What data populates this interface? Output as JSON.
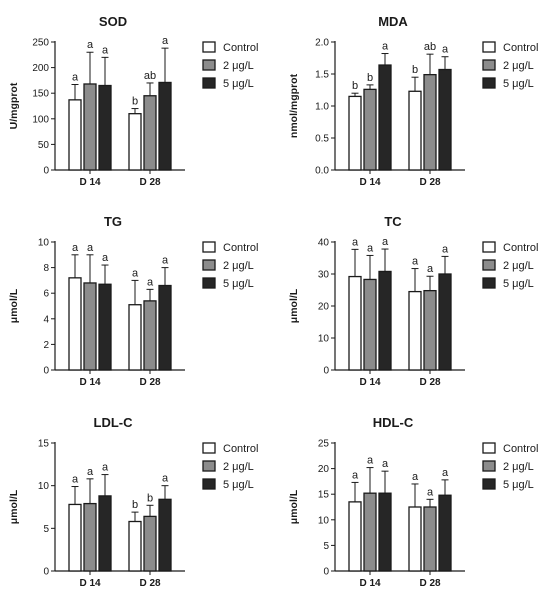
{
  "groups": [
    "D 14",
    "D 28"
  ],
  "legend": [
    "Control",
    "2 μg/L",
    "5 μg/L"
  ],
  "colors": {
    "Control": "#ffffff",
    "2 μg/L": "#8c8c8c",
    "5 μg/L": "#262626",
    "stroke": "#1a1a1a"
  },
  "chart_data": [
    {
      "type": "bar",
      "title": "SOD",
      "ylabel": "U/mgprot",
      "categories": [
        "D 14",
        "D 28"
      ],
      "ylim": [
        0,
        250
      ],
      "yticks": [
        0,
        50,
        100,
        150,
        200,
        250
      ],
      "series": [
        {
          "name": "Control",
          "values": [
            137,
            110
          ],
          "errors": [
            30,
            10
          ],
          "letters": [
            "a",
            "b"
          ]
        },
        {
          "name": "2 μg/L",
          "values": [
            168,
            145
          ],
          "errors": [
            62,
            25
          ],
          "letters": [
            "a",
            "ab"
          ]
        },
        {
          "name": "5 μg/L",
          "values": [
            165,
            171
          ],
          "errors": [
            55,
            67
          ],
          "letters": [
            "a",
            "a"
          ]
        }
      ]
    },
    {
      "type": "bar",
      "title": "MDA",
      "ylabel": "nmol/mgprot",
      "categories": [
        "D 14",
        "D 28"
      ],
      "ylim": [
        0,
        2.0
      ],
      "yticks": [
        0.0,
        0.5,
        1.0,
        1.5,
        2.0
      ],
      "series": [
        {
          "name": "Control",
          "values": [
            1.15,
            1.23
          ],
          "errors": [
            0.05,
            0.22
          ],
          "letters": [
            "b",
            "b"
          ]
        },
        {
          "name": "2 μg/L",
          "values": [
            1.26,
            1.49
          ],
          "errors": [
            0.07,
            0.32
          ],
          "letters": [
            "b",
            "ab"
          ]
        },
        {
          "name": "5 μg/L",
          "values": [
            1.64,
            1.57
          ],
          "errors": [
            0.18,
            0.2
          ],
          "letters": [
            "a",
            "a"
          ]
        }
      ]
    },
    {
      "type": "bar",
      "title": "TG",
      "ylabel": "μmol/L",
      "categories": [
        "D 14",
        "D 28"
      ],
      "ylim": [
        0,
        10
      ],
      "yticks": [
        0,
        2,
        4,
        6,
        8,
        10
      ],
      "series": [
        {
          "name": "Control",
          "values": [
            7.2,
            5.1
          ],
          "errors": [
            1.8,
            1.9
          ],
          "letters": [
            "a",
            "a"
          ]
        },
        {
          "name": "2 μg/L",
          "values": [
            6.8,
            5.4
          ],
          "errors": [
            2.2,
            0.9
          ],
          "letters": [
            "a",
            "a"
          ]
        },
        {
          "name": "5 μg/L",
          "values": [
            6.7,
            6.6
          ],
          "errors": [
            1.5,
            1.4
          ],
          "letters": [
            "a",
            "a"
          ]
        }
      ]
    },
    {
      "type": "bar",
      "title": "TC",
      "ylabel": "μmol/L",
      "categories": [
        "D 14",
        "D 28"
      ],
      "ylim": [
        0,
        40
      ],
      "yticks": [
        0,
        10,
        20,
        30,
        40
      ],
      "series": [
        {
          "name": "Control",
          "values": [
            29.2,
            24.5
          ],
          "errors": [
            8.5,
            7.2
          ],
          "letters": [
            "a",
            "a"
          ]
        },
        {
          "name": "2 μg/L",
          "values": [
            28.3,
            24.8
          ],
          "errors": [
            7.5,
            4.5
          ],
          "letters": [
            "a",
            "a"
          ]
        },
        {
          "name": "5 μg/L",
          "values": [
            30.8,
            30.0
          ],
          "errors": [
            7.0,
            5.5
          ],
          "letters": [
            "a",
            "a"
          ]
        }
      ]
    },
    {
      "type": "bar",
      "title": "LDL-C",
      "ylabel": "μmol/L",
      "categories": [
        "D 14",
        "D 28"
      ],
      "ylim": [
        0,
        15
      ],
      "yticks": [
        0,
        5,
        10,
        15
      ],
      "series": [
        {
          "name": "Control",
          "values": [
            7.8,
            5.8
          ],
          "errors": [
            2.1,
            1.1
          ],
          "letters": [
            "a",
            "b"
          ]
        },
        {
          "name": "2 μg/L",
          "values": [
            7.9,
            6.4
          ],
          "errors": [
            2.9,
            1.3
          ],
          "letters": [
            "a",
            "b"
          ]
        },
        {
          "name": "5 μg/L",
          "values": [
            8.8,
            8.4
          ],
          "errors": [
            2.5,
            1.6
          ],
          "letters": [
            "a",
            "a"
          ]
        }
      ]
    },
    {
      "type": "bar",
      "title": "HDL-C",
      "ylabel": "μmol/L",
      "categories": [
        "D 14",
        "D 28"
      ],
      "ylim": [
        0,
        25
      ],
      "yticks": [
        0,
        5,
        10,
        15,
        20,
        25
      ],
      "series": [
        {
          "name": "Control",
          "values": [
            13.5,
            12.5
          ],
          "errors": [
            3.8,
            4.5
          ],
          "letters": [
            "a",
            "a"
          ]
        },
        {
          "name": "2 μg/L",
          "values": [
            15.2,
            12.5
          ],
          "errors": [
            5.0,
            1.5
          ],
          "letters": [
            "a",
            "a"
          ]
        },
        {
          "name": "5 μg/L",
          "values": [
            15.2,
            14.8
          ],
          "errors": [
            4.3,
            3.0
          ],
          "letters": [
            "a",
            "a"
          ]
        }
      ]
    }
  ]
}
